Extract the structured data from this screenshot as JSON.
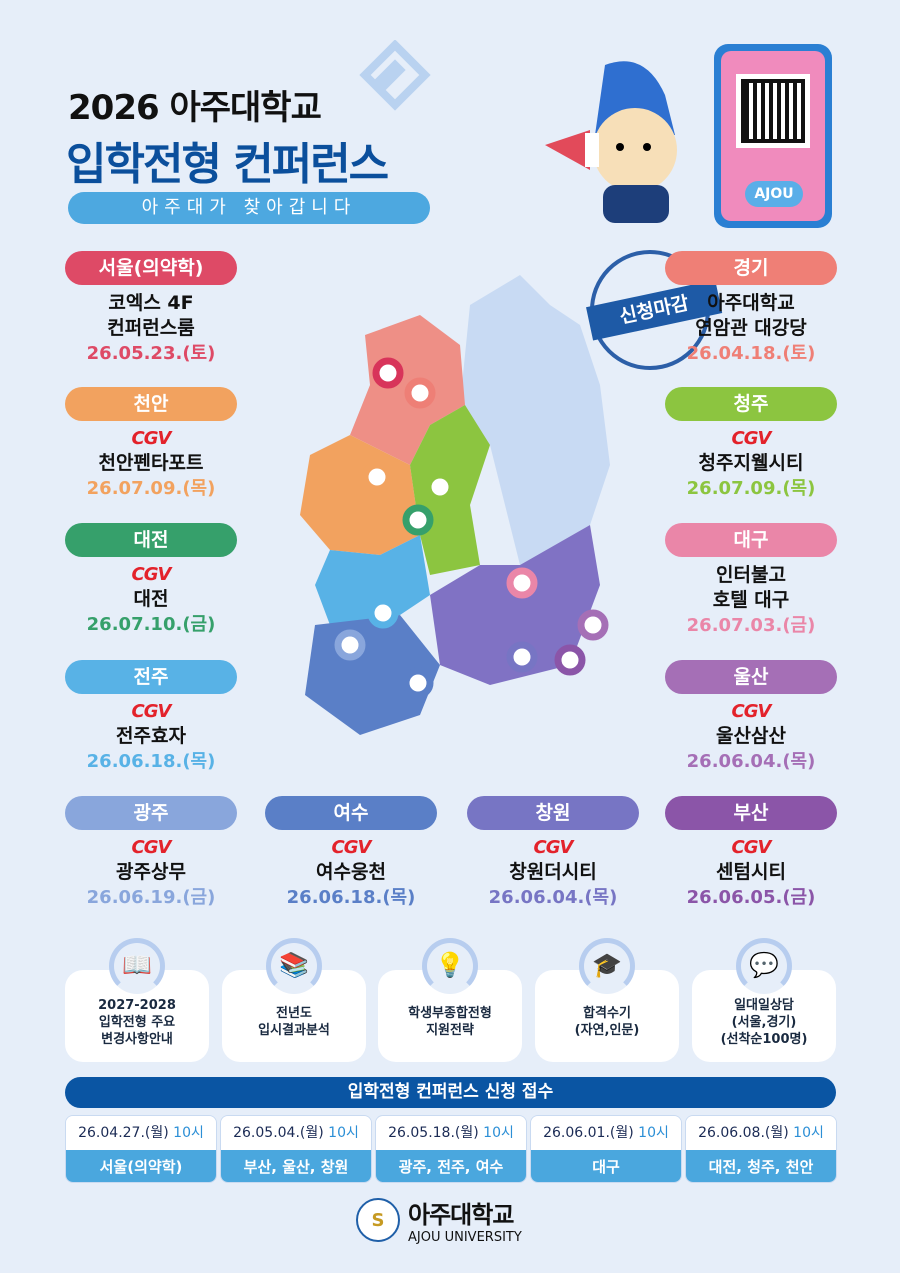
{
  "header": {
    "title_line1": "2026 아주대학교",
    "title_line2": "입학전형 컨퍼런스",
    "subtitle": "아주대가 찾아갑니다"
  },
  "qr": {
    "label": "AJOU"
  },
  "stamp": {
    "text": "신청마감"
  },
  "cgv_logo": "CGV",
  "regions": [
    {
      "name": "서울(의약학)",
      "lines": [
        "코엑스 4F",
        "컨퍼런스룸"
      ],
      "date": "26.05.23.(토)",
      "color": "#de4a66",
      "cgv": false
    },
    {
      "name": "경기",
      "lines": [
        "아주대학교",
        "연암관 대강당"
      ],
      "date": "26.04.18.(토)",
      "color": "#ef7f76",
      "cgv": false
    },
    {
      "name": "천안",
      "lines": [
        "천안펜타포트"
      ],
      "date": "26.07.09.(목)",
      "color": "#f2a25f",
      "cgv": true
    },
    {
      "name": "청주",
      "lines": [
        "청주지웰시티"
      ],
      "date": "26.07.09.(목)",
      "color": "#8cc540",
      "cgv": true
    },
    {
      "name": "대전",
      "lines": [
        "대전"
      ],
      "date": "26.07.10.(금)",
      "color": "#36a06b",
      "cgv": true
    },
    {
      "name": "대구",
      "lines": [
        "인터불고",
        "호텔 대구"
      ],
      "date": "26.07.03.(금)",
      "color": "#ea86a8",
      "cgv": false
    },
    {
      "name": "전주",
      "lines": [
        "전주효자"
      ],
      "date": "26.06.18.(목)",
      "color": "#58b2e6",
      "cgv": true
    },
    {
      "name": "울산",
      "lines": [
        "울산삼산"
      ],
      "date": "26.06.04.(목)",
      "color": "#a56fb6",
      "cgv": true
    },
    {
      "name": "광주",
      "lines": [
        "광주상무"
      ],
      "date": "26.06.19.(금)",
      "color": "#89a6dc",
      "cgv": true
    },
    {
      "name": "여수",
      "lines": [
        "여수웅천"
      ],
      "date": "26.06.18.(목)",
      "color": "#5a7fc7",
      "cgv": true
    },
    {
      "name": "창원",
      "lines": [
        "창원더시티"
      ],
      "date": "26.06.04.(목)",
      "color": "#7775c4",
      "cgv": true
    },
    {
      "name": "부산",
      "lines": [
        "센텀시티"
      ],
      "date": "26.06.05.(금)",
      "color": "#8b55a8",
      "cgv": true
    }
  ],
  "programs": [
    {
      "icon": "book-reader-icon",
      "glyph": "📖",
      "lines": [
        "2027-2028",
        "입학전형 주요",
        "변경사항안내"
      ]
    },
    {
      "icon": "books-presenter-icon",
      "glyph": "📚",
      "lines": [
        "전년도",
        "입시결과분석"
      ]
    },
    {
      "icon": "lightbulb-icon",
      "glyph": "💡",
      "lines": [
        "학생부종합전형",
        "지원전략"
      ]
    },
    {
      "icon": "celebration-icon",
      "glyph": "🎓",
      "lines": [
        "합격수기",
        "(자연,인문)"
      ]
    },
    {
      "icon": "consultation-icon",
      "glyph": "💬",
      "lines": [
        "일대일상담",
        "(서울,경기)",
        "(선착순100명)"
      ]
    }
  ],
  "registration": {
    "title": "입학전형 컨퍼런스 신청 접수",
    "slots": [
      {
        "date": "26.04.27.(월)",
        "time": "10시",
        "regions": "서울(의약학)"
      },
      {
        "date": "26.05.04.(월)",
        "time": "10시",
        "regions": "부산, 울산, 창원"
      },
      {
        "date": "26.05.18.(월)",
        "time": "10시",
        "regions": "광주, 전주, 여수"
      },
      {
        "date": "26.06.01.(월)",
        "time": "10시",
        "regions": "대구"
      },
      {
        "date": "26.06.08.(월)",
        "time": "10시",
        "regions": "대전, 청주, 천안"
      }
    ]
  },
  "footer": {
    "name_ko": "아주대학교",
    "name_en": "AJOU UNIVERSITY"
  }
}
